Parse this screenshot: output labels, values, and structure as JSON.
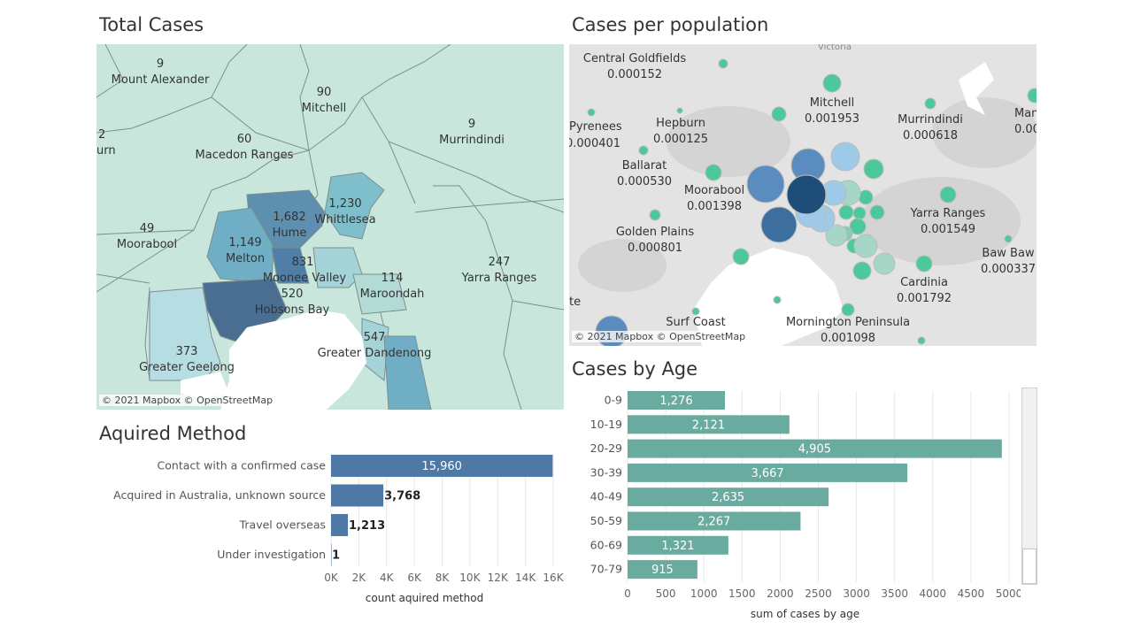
{
  "colors": {
    "map_fill_light": "#c8e6dc",
    "map_fill_mid": "#7fbfcc",
    "map_fill_dark": "#4f7fa8",
    "method_bar": "#4e79a7",
    "age_bar": "#6aaba0",
    "bubble_green": "#4cc99a",
    "bubble_blue": "#3c6e9e"
  },
  "total_cases_map": {
    "title": "Total Cases",
    "credit": "© 2021 Mapbox © OpenStreetMap",
    "labels": [
      {
        "name": "Mount Alexander",
        "value": "9"
      },
      {
        "name": "Mitchell",
        "value": "90"
      },
      {
        "name": "Murrindindi",
        "value": "9"
      },
      {
        "name": "Macedon Ranges",
        "value": "60"
      },
      {
        "name": "urn",
        "value": "2"
      },
      {
        "name": "Hume",
        "value": "1,682"
      },
      {
        "name": "Whittlesea",
        "value": "1,230"
      },
      {
        "name": "Moorabool",
        "value": "49"
      },
      {
        "name": "Melton",
        "value": "1,149"
      },
      {
        "name": "Moonee Valley",
        "value": "831"
      },
      {
        "name": "Hobsons Bay",
        "value": "520"
      },
      {
        "name": "Maroondah",
        "value": "114"
      },
      {
        "name": "Yarra Ranges",
        "value": "247"
      },
      {
        "name": "Greater Geelong",
        "value": "373"
      },
      {
        "name": "Greater Dandenong",
        "value": "547"
      }
    ]
  },
  "cases_per_population_map": {
    "title": "Cases per population",
    "credit": "© 2021 Mapbox © OpenStreetMap",
    "region_label": "Victoria",
    "labels": [
      {
        "name": "Central Goldfields",
        "value": "0.000152"
      },
      {
        "name": "Mitchell",
        "value": "0.001953"
      },
      {
        "name": "Pyrenees",
        "value": "0.000401"
      },
      {
        "name": "Hepburn",
        "value": "0.000125"
      },
      {
        "name": "Murrindindi",
        "value": "0.000618"
      },
      {
        "name": "Man",
        "value": "0.00"
      },
      {
        "name": "Ballarat",
        "value": "0.000530"
      },
      {
        "name": "Moorabool",
        "value": "0.001398"
      },
      {
        "name": "Yarra Ranges",
        "value": "0.001549"
      },
      {
        "name": "Golden Plains",
        "value": "0.000801"
      },
      {
        "name": "Baw Baw",
        "value": "0.000337"
      },
      {
        "name": "Cardinia",
        "value": "0.001792"
      },
      {
        "name": "Surf Coast",
        "value": ""
      },
      {
        "name": "Mornington Peninsula",
        "value": "0.001098"
      },
      {
        "name": "te",
        "value": ""
      }
    ]
  },
  "chart_data": [
    {
      "type": "bar",
      "orientation": "horizontal",
      "title": "Aquired Method",
      "categories": [
        "Contact with a confirmed case",
        "Acquired in Australia, unknown source",
        "Travel overseas",
        "Under investigation"
      ],
      "values": [
        15960,
        3768,
        1213,
        1
      ],
      "value_labels": [
        "15,960",
        "3,768",
        "1,213",
        "1"
      ],
      "xlabel": "count aquired method",
      "ticks": [
        0,
        2000,
        4000,
        6000,
        8000,
        10000,
        12000,
        14000,
        16000
      ],
      "tick_labels": [
        "0K",
        "2K",
        "4K",
        "6K",
        "8K",
        "10K",
        "12K",
        "14K",
        "16K"
      ],
      "xlim": [
        0,
        16000
      ],
      "grid": true
    },
    {
      "type": "bar",
      "orientation": "horizontal",
      "title": "Cases by Age",
      "categories": [
        "0-9",
        "10-19",
        "20-29",
        "30-39",
        "40-49",
        "50-59",
        "60-69",
        "70-79"
      ],
      "values": [
        1276,
        2121,
        4905,
        3667,
        2635,
        2267,
        1321,
        915
      ],
      "value_labels": [
        "1,276",
        "2,121",
        "4,905",
        "3,667",
        "2,635",
        "2,267",
        "1,321",
        "915"
      ],
      "xlabel": "sum of cases by age",
      "ticks": [
        0,
        500,
        1000,
        1500,
        2000,
        2500,
        3000,
        3500,
        4000,
        4500,
        5000
      ],
      "tick_labels": [
        "0",
        "500",
        "1000",
        "1500",
        "2000",
        "2500",
        "3000",
        "3500",
        "4000",
        "4500",
        "5000"
      ],
      "xlim": [
        0,
        5000
      ],
      "grid": true
    }
  ]
}
